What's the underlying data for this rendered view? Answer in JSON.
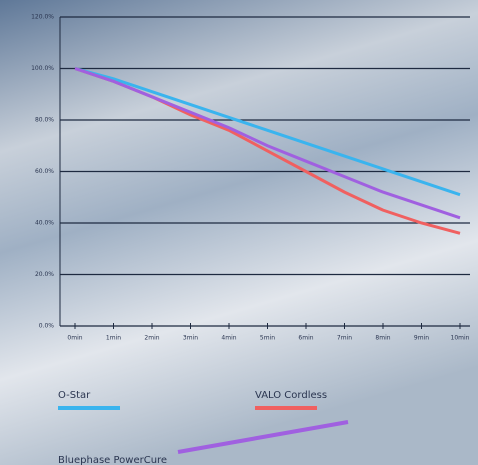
{
  "chart_data": {
    "type": "line",
    "categories": [
      "0min",
      "1min",
      "2min",
      "3min",
      "4min",
      "5min",
      "6min",
      "7min",
      "8min",
      "9min",
      "10min"
    ],
    "series": [
      {
        "name": "O-Star",
        "color": "#3ab4ee",
        "values": [
          100,
          96,
          91,
          86,
          81,
          76,
          71,
          66,
          61,
          56,
          51
        ]
      },
      {
        "name": "VALO Cordless",
        "color": "#f06060",
        "values": [
          100,
          95,
          89,
          82,
          76,
          68,
          60,
          52,
          45,
          40,
          36
        ]
      },
      {
        "name": "Bluephase PowerCure",
        "color": "#a060e0",
        "values": [
          100,
          95,
          89,
          83,
          77,
          70,
          64,
          58,
          52,
          47,
          42
        ]
      }
    ],
    "ylim": [
      0,
      120
    ],
    "yticks": [
      {
        "value": 0,
        "label": "0.0%"
      },
      {
        "value": 20,
        "label": "20.0%"
      },
      {
        "value": 40,
        "label": "40.0%"
      },
      {
        "value": 60,
        "label": "60.0%"
      },
      {
        "value": 80,
        "label": "80.0%"
      },
      {
        "value": 100,
        "label": "100.0%"
      },
      {
        "value": 120,
        "label": "120.0%"
      }
    ],
    "grid": true
  }
}
